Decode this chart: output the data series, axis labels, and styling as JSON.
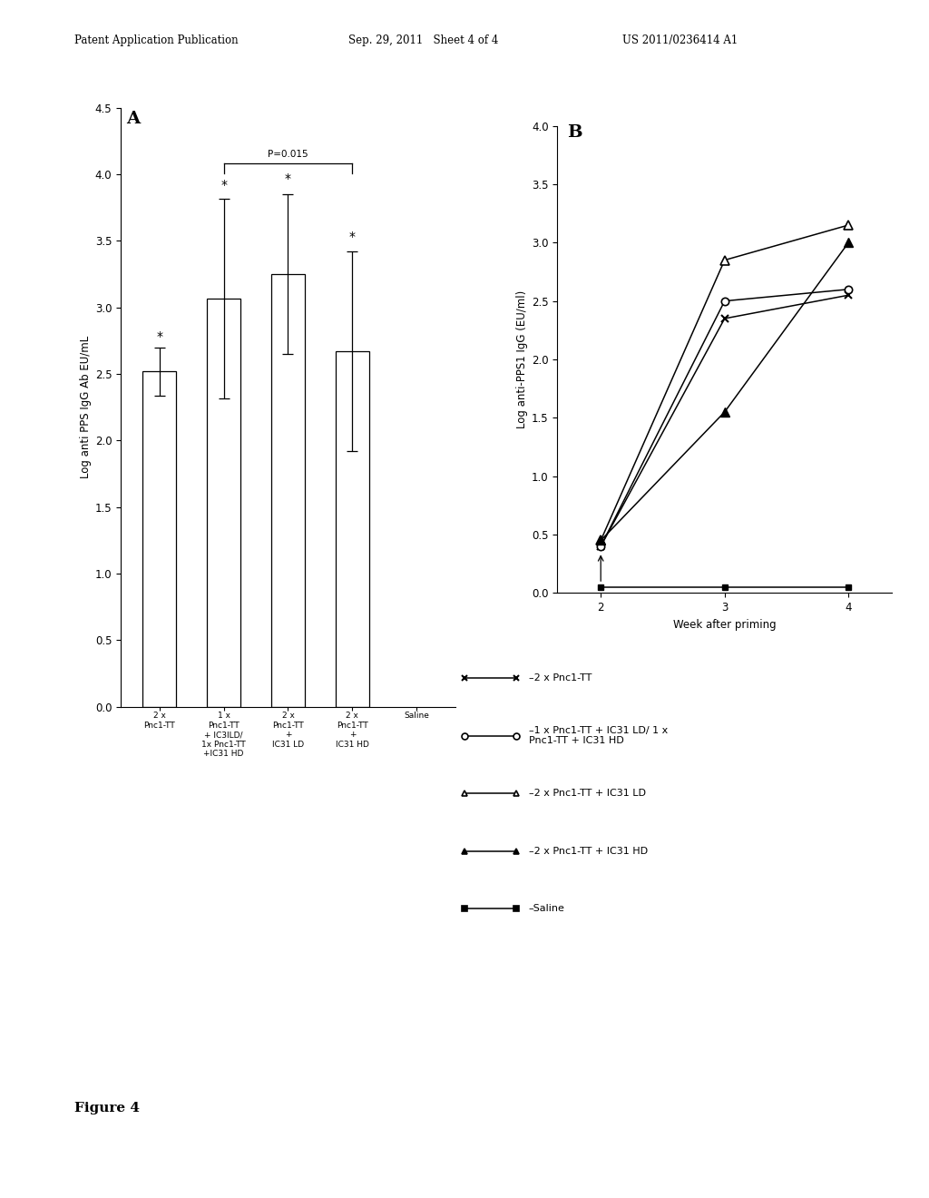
{
  "header_left": "Patent Application Publication",
  "header_mid": "Sep. 29, 2011   Sheet 4 of 4",
  "header_right": "US 2011/0236414 A1",
  "footer": "Figure 4",
  "bar_values": [
    2.52,
    3.07,
    3.25,
    2.67,
    0.0
  ],
  "bar_errors": [
    0.18,
    0.75,
    0.6,
    0.75,
    0.0
  ],
  "bar_ylabel": "Log anti PPS IgG Ab EU/mL",
  "bar_ylim": [
    0.0,
    4.5
  ],
  "bar_yticks": [
    0.0,
    0.5,
    1.0,
    1.5,
    2.0,
    2.5,
    3.0,
    3.5,
    4.0,
    4.5
  ],
  "panel_a_label": "A",
  "significance_label": "P=0.015",
  "line_weeks": [
    2,
    3,
    4
  ],
  "line_2x_Pnc1TT": [
    0.4,
    2.35,
    2.55
  ],
  "line_1x_combo": [
    0.4,
    2.5,
    2.6
  ],
  "line_2x_IC31LD": [
    0.45,
    2.85,
    3.15
  ],
  "line_2x_IC31HD": [
    0.45,
    1.55,
    3.0
  ],
  "line_saline": [
    0.05,
    0.05,
    0.05
  ],
  "line_ylabel": "Log anti-PPS1 IgG (EU/ml)",
  "line_ylim": [
    0.0,
    4.0
  ],
  "line_yticks": [
    0.0,
    0.5,
    1.0,
    1.5,
    2.0,
    2.5,
    3.0,
    3.5,
    4.0
  ],
  "panel_b_label": "B",
  "legend_entries": [
    "2 x Pnc1-TT",
    "1 x Pnc1-TT + IC31 LD/ 1 x\nPnc1-TT + IC31 HD",
    "2 x Pnc1-TT + IC31 LD",
    "2 x Pnc1-TT + IC31 HD",
    "Saline"
  ],
  "legend_markers": [
    "x",
    "o",
    "^",
    "^",
    "s"
  ],
  "legend_mfc": [
    "black",
    "white",
    "white",
    "black",
    "black"
  ],
  "legend_mec": [
    "black",
    "black",
    "black",
    "black",
    "black"
  ],
  "bg_color": "#ffffff",
  "text_color": "#000000"
}
